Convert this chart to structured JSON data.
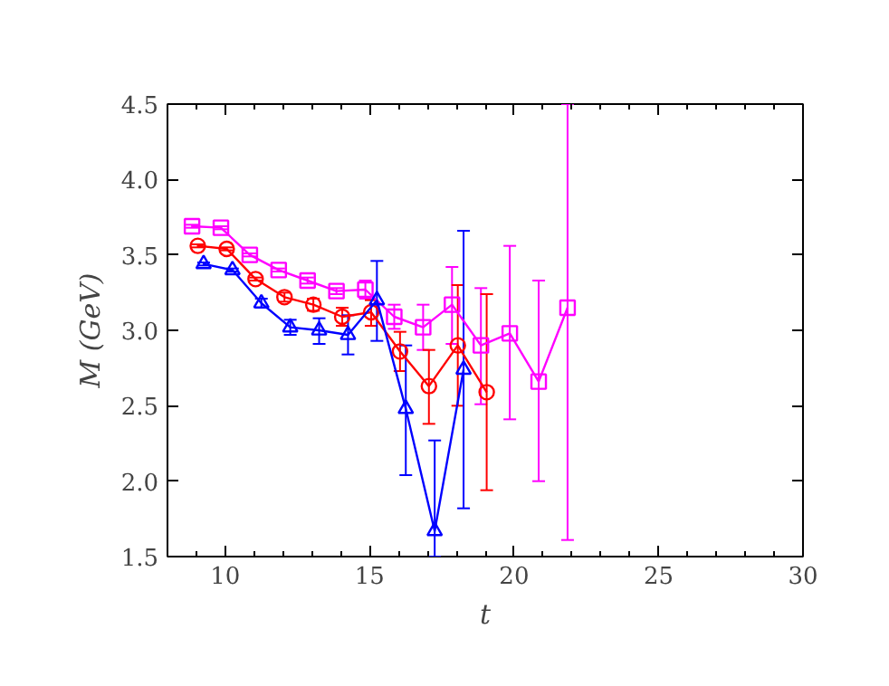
{
  "chart_data": {
    "type": "line",
    "xlabel": "t",
    "ylabel": "M (GeV)",
    "xlim": [
      8,
      30
    ],
    "ylim": [
      1.5,
      4.5
    ],
    "xticks": [
      10,
      15,
      20,
      25,
      30
    ],
    "yticks": [
      {
        "value": 1.5,
        "label": "1.5"
      },
      {
        "value": 2,
        "label": "2.0"
      },
      {
        "value": 2.5,
        "label": "2.5"
      },
      {
        "value": 3,
        "label": "3.0"
      },
      {
        "value": 3.5,
        "label": "3.5"
      },
      {
        "value": 4,
        "label": "4.0"
      },
      {
        "value": 4.5,
        "label": "4.5"
      }
    ],
    "grid": false,
    "series": [
      {
        "color": "#ff00ff",
        "marker": "square",
        "x": [
          8.85,
          9.85,
          10.85,
          11.85,
          12.85,
          13.85,
          14.85,
          15.85,
          16.85,
          17.85,
          18.85,
          19.85,
          20.85,
          21.85
        ],
        "values": [
          3.69,
          3.68,
          3.5,
          3.4,
          3.33,
          3.26,
          3.27,
          3.09,
          3.02,
          3.17,
          2.9,
          2.98,
          2.66,
          3.15
        ],
        "errors": [
          [
            3.68,
            3.7
          ],
          [
            3.67,
            3.69
          ],
          [
            3.49,
            3.51
          ],
          [
            3.39,
            3.41
          ],
          [
            3.31,
            3.35
          ],
          [
            3.24,
            3.28
          ],
          [
            3.21,
            3.33
          ],
          [
            3.01,
            3.17
          ],
          [
            2.87,
            3.17
          ],
          [
            2.91,
            3.42
          ],
          [
            2.51,
            3.28
          ],
          [
            2.41,
            3.56
          ],
          [
            2.0,
            3.33
          ],
          [
            1.61,
            4.5
          ]
        ]
      },
      {
        "color": "#ff0000",
        "marker": "circle",
        "x": [
          9.05,
          10.05,
          11.05,
          12.05,
          13.05,
          14.05,
          15.05,
          16.05,
          17.05,
          18.05,
          19.05
        ],
        "values": [
          3.56,
          3.54,
          3.34,
          3.22,
          3.17,
          3.09,
          3.12,
          2.86,
          2.63,
          2.9,
          2.59
        ],
        "errors": [
          [
            3.55,
            3.57
          ],
          [
            3.53,
            3.55
          ],
          [
            3.33,
            3.35
          ],
          [
            3.19,
            3.25
          ],
          [
            3.13,
            3.21
          ],
          [
            3.03,
            3.15
          ],
          [
            3.03,
            3.2
          ],
          [
            2.73,
            2.99
          ],
          [
            2.38,
            2.87
          ],
          [
            2.5,
            3.3
          ],
          [
            1.94,
            3.24
          ]
        ]
      },
      {
        "color": "#0000ff",
        "marker": "triangle",
        "x": [
          9.25,
          10.25,
          11.25,
          12.25,
          13.25,
          14.25,
          15.25,
          16.25,
          17.25,
          18.25
        ],
        "values": [
          3.44,
          3.4,
          3.18,
          3.02,
          3.0,
          2.97,
          3.2,
          2.48,
          1.67,
          2.74
        ],
        "errors": [
          [
            3.43,
            3.45
          ],
          [
            3.39,
            3.41
          ],
          [
            3.15,
            3.21
          ],
          [
            2.97,
            3.07
          ],
          [
            2.91,
            3.08
          ],
          [
            2.84,
            3.1
          ],
          [
            2.93,
            3.46
          ],
          [
            2.04,
            2.9
          ],
          [
            1.5,
            2.27
          ],
          [
            1.82,
            3.66
          ]
        ]
      }
    ]
  }
}
